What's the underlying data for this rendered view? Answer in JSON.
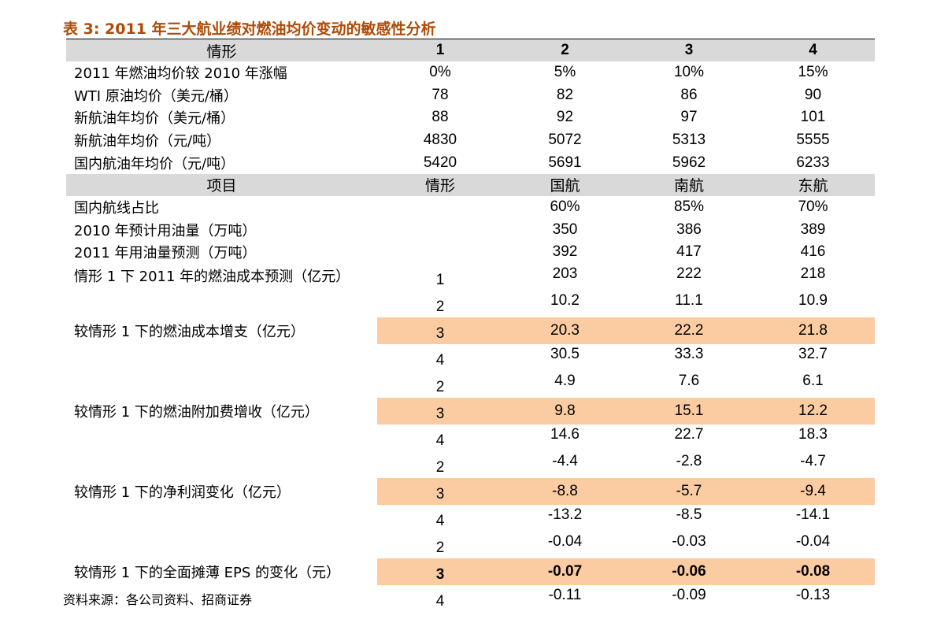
{
  "title": "表 3:  2011 年三大航业绩对燃油均价变动的敏感性分析",
  "header1": [
    "情形",
    "1",
    "2",
    "3",
    "4"
  ],
  "scenario_rows": [
    {
      "label": "2011 年燃油均价较 2010 年涨幅",
      "values": [
        "0%",
        "5%",
        "10%",
        "15%"
      ]
    },
    {
      "label": "WTI 原油均价（美元/桶）",
      "values": [
        "78",
        "82",
        "86",
        "90"
      ]
    },
    {
      "label": "新航油年均价（美元/桶）",
      "values": [
        "88",
        "92",
        "97",
        "101"
      ]
    },
    {
      "label": "新航油年均价（元/吨）",
      "values": [
        "4830",
        "5072",
        "5313",
        "5555"
      ]
    },
    {
      "label": "国内航油年均价（元/吨）",
      "values": [
        "5420",
        "5691",
        "5962",
        "6233"
      ]
    }
  ],
  "header2": [
    "项目",
    "情形",
    "国航",
    "南航",
    "东航"
  ],
  "airline_rows": [
    {
      "label": "国内航线占比",
      "values": [
        "60%",
        "85%",
        "70%"
      ]
    },
    {
      "label": "2010 年预计用油量（万吨）",
      "values": [
        "350",
        "386",
        "389"
      ]
    },
    {
      "label": "2011 年用油量预测（万吨）",
      "values": [
        "392",
        "417",
        "416"
      ]
    }
  ],
  "fuel_cost": {
    "label": "情形 1 下 2011 年的燃油成本预测（亿元）",
    "scenario": "1",
    "values": [
      "203",
      "222",
      "218"
    ]
  },
  "groups": [
    {
      "label": "较情形 1 下的燃油成本增支（亿元）",
      "rows": [
        {
          "scenario": "2",
          "values": [
            "10.2",
            "11.1",
            "10.9"
          ]
        },
        {
          "scenario": "3",
          "values": [
            "20.3",
            "22.2",
            "21.8"
          ]
        },
        {
          "scenario": "4",
          "values": [
            "30.5",
            "33.3",
            "32.7"
          ]
        }
      ]
    },
    {
      "label": "较情形 1 下的燃油附加费增收（亿元）",
      "rows": [
        {
          "scenario": "2",
          "values": [
            "4.9",
            "7.6",
            "6.1"
          ]
        },
        {
          "scenario": "3",
          "values": [
            "9.8",
            "15.1",
            "12.2"
          ]
        },
        {
          "scenario": "4",
          "values": [
            "14.6",
            "22.7",
            "18.3"
          ]
        }
      ]
    },
    {
      "label": "较情形 1 下的净利润变化（亿元）",
      "rows": [
        {
          "scenario": "2",
          "values": [
            "-4.4",
            "-2.8",
            "-4.7"
          ]
        },
        {
          "scenario": "3",
          "values": [
            "-8.8",
            "-5.7",
            "-9.4"
          ]
        },
        {
          "scenario": "4",
          "values": [
            "-13.2",
            "-8.5",
            "-14.1"
          ]
        }
      ]
    },
    {
      "label": "较情形 1 下的全面摊薄 EPS 的变化（元）",
      "rows": [
        {
          "scenario": "2",
          "values": [
            "-0.04",
            "-0.03",
            "-0.04"
          ]
        },
        {
          "scenario": "3",
          "values": [
            "-0.07",
            "-0.06",
            "-0.08"
          ]
        },
        {
          "scenario": "4",
          "values": [
            "-0.11",
            "-0.09",
            "-0.13"
          ]
        }
      ]
    }
  ],
  "source": "资料来源：各公司资料、招商证券",
  "colors": {
    "title": "#b04a06",
    "header_bg": "#d9d9d9",
    "highlight_bg": "#fbcba1"
  }
}
